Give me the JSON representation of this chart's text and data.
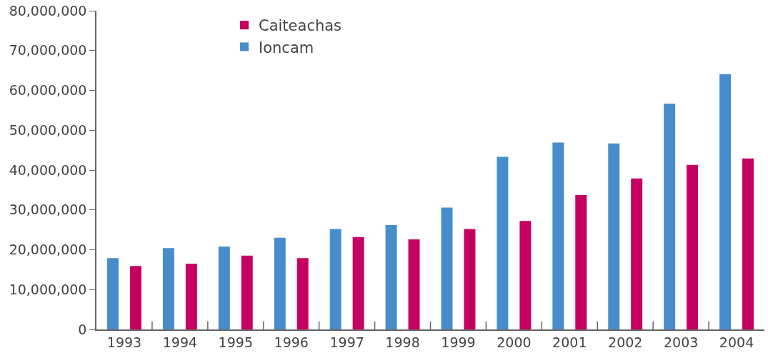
{
  "chart_data": {
    "type": "bar",
    "categories": [
      "1993",
      "1994",
      "1995",
      "1996",
      "1997",
      "1998",
      "1999",
      "2000",
      "2001",
      "2002",
      "2003",
      "2004"
    ],
    "series": [
      {
        "name": "Ioncam",
        "color": "#478dcb",
        "values": [
          17900000,
          20400000,
          20800000,
          23000000,
          25200000,
          26200000,
          30600000,
          43300000,
          46900000,
          46700000,
          56700000,
          64100000
        ]
      },
      {
        "name": "Caiteachas",
        "color": "#c60060",
        "values": [
          15900000,
          16500000,
          18500000,
          17900000,
          23200000,
          22600000,
          25200000,
          27200000,
          33700000,
          37900000,
          41300000,
          42900000
        ]
      }
    ],
    "ylim": [
      0,
      80000000
    ],
    "yticks": [
      {
        "value": 0,
        "label": "0"
      },
      {
        "value": 10000000,
        "label": "10,000,000"
      },
      {
        "value": 20000000,
        "label": "20,000,000"
      },
      {
        "value": 30000000,
        "label": "30,000,000"
      },
      {
        "value": 40000000,
        "label": "40,000,000"
      },
      {
        "value": 50000000,
        "label": "50,000,000"
      },
      {
        "value": 60000000,
        "label": "60,000,000"
      },
      {
        "value": 70000000,
        "label": "70,000,000"
      },
      {
        "value": 80000000,
        "label": "80,000,000"
      }
    ],
    "legend": "top"
  }
}
